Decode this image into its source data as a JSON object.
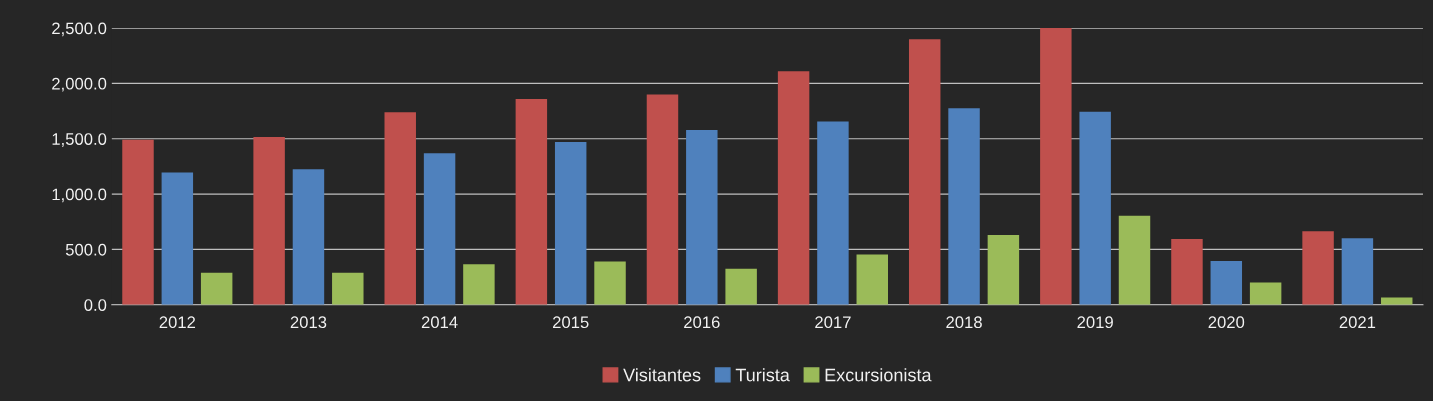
{
  "chart_data": {
    "type": "bar",
    "categories": [
      "2012",
      "2013",
      "2014",
      "2015",
      "2016",
      "2017",
      "2018",
      "2019",
      "2020",
      "2021"
    ],
    "series": [
      {
        "name": "Visitantes",
        "color": "#c0504d",
        "values": [
          1490,
          1515,
          1740,
          1860,
          1900,
          2110,
          2400,
          2500,
          595,
          665
        ]
      },
      {
        "name": "Turista",
        "color": "#4f81bd",
        "values": [
          1195,
          1225,
          1370,
          1470,
          1580,
          1655,
          1775,
          1745,
          395,
          600
        ]
      },
      {
        "name": "Excursionista",
        "color": "#9bbb59",
        "values": [
          290,
          290,
          365,
          390,
          325,
          455,
          630,
          805,
          200,
          65
        ]
      }
    ],
    "ylim": [
      0,
      2500
    ],
    "yticks": [
      {
        "value": 0,
        "label": "0.0"
      },
      {
        "value": 500,
        "label": "500.0"
      },
      {
        "value": 1000,
        "label": "1,000.0"
      },
      {
        "value": 1500,
        "label": "1,500.0"
      },
      {
        "value": 2000,
        "label": "2,000.0"
      },
      {
        "value": 2500,
        "label": "2,500.0"
      }
    ],
    "grid": "y",
    "legend": "bottom"
  }
}
